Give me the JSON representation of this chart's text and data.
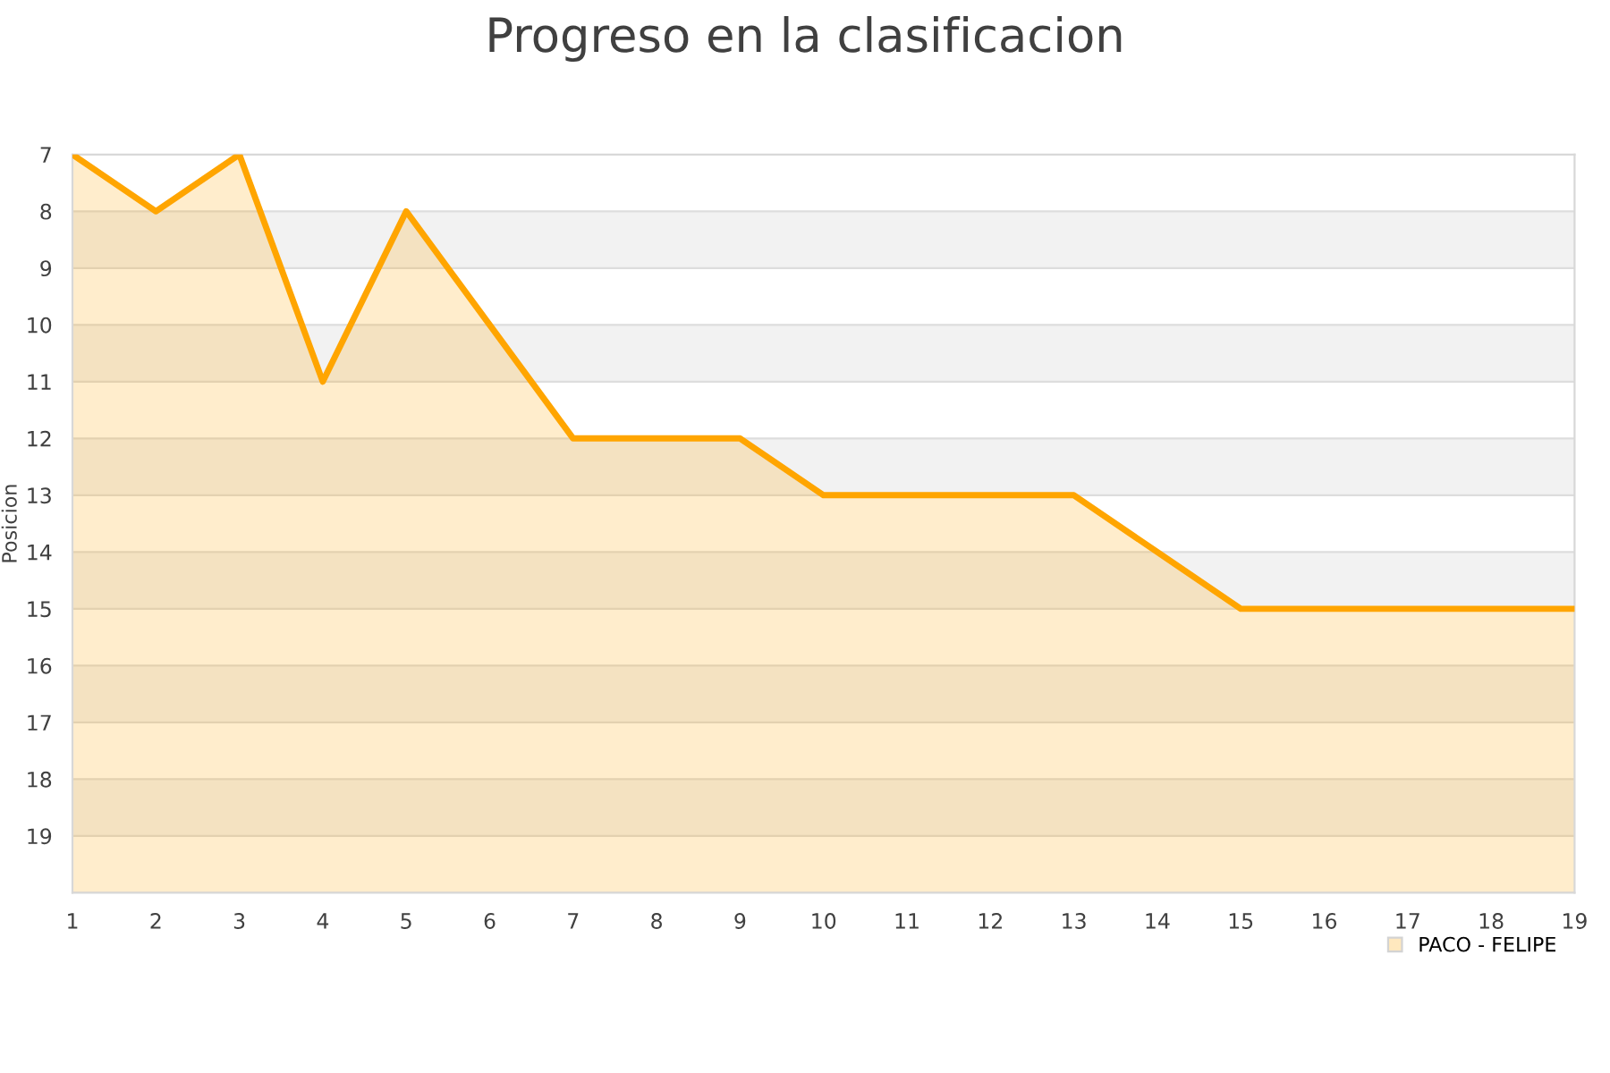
{
  "chart_data": {
    "type": "line",
    "title": "Progreso en la clasificacion",
    "ylabel": "Posicion",
    "x": [
      1,
      2,
      3,
      4,
      5,
      6,
      7,
      8,
      9,
      10,
      11,
      12,
      13,
      14,
      15,
      16,
      17,
      18,
      19
    ],
    "series": [
      {
        "name": "PACO - FELIPE",
        "color": "#ffa500",
        "values": [
          7,
          8,
          7,
          11,
          8,
          10,
          12,
          12,
          12,
          13,
          13,
          13,
          13,
          14,
          15,
          15,
          15,
          15,
          15
        ],
        "upper": [
          7,
          8,
          7,
          11,
          8,
          10,
          12,
          12,
          12,
          13,
          13,
          13,
          13,
          14,
          15,
          15,
          15,
          15,
          15
        ],
        "lower": [
          20,
          20,
          20,
          20,
          20,
          20,
          20,
          20,
          20,
          20,
          20,
          20,
          20,
          20,
          20,
          20,
          20,
          20,
          20
        ]
      }
    ],
    "xlim": [
      1,
      19
    ],
    "xticks": [
      1,
      2,
      3,
      4,
      5,
      6,
      7,
      8,
      9,
      10,
      11,
      12,
      13,
      14,
      15,
      16,
      17,
      18,
      19
    ],
    "ylim": [
      20,
      7
    ],
    "yticks": [
      7,
      8,
      9,
      10,
      11,
      12,
      13,
      14,
      15,
      16,
      17,
      18,
      19,
      {
        "value": 20,
        "label": null
      }
    ],
    "grid": "y",
    "legend": "bottom right",
    "marker": "none",
    "line_style": "solid"
  }
}
